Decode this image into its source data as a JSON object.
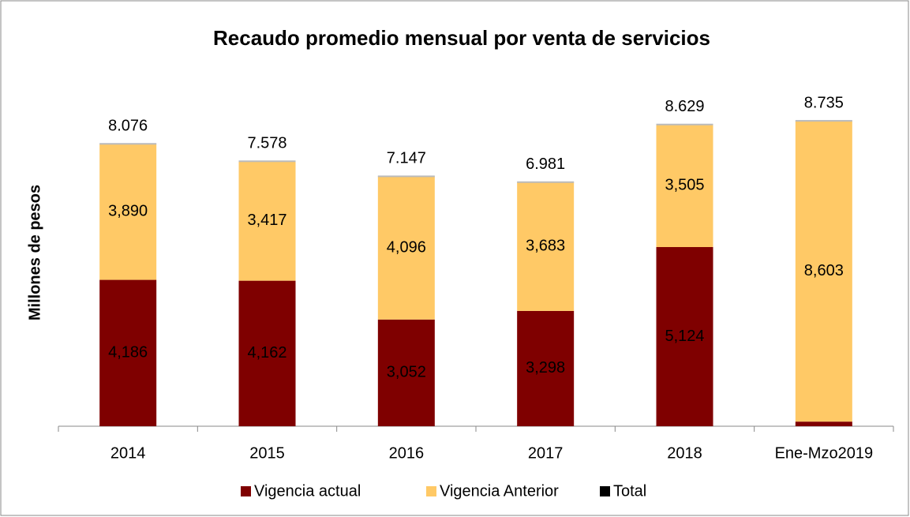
{
  "chart_data": {
    "type": "stacked-bar",
    "title": "Recaudo promedio mensual por venta de servicios",
    "y_label": "Millones de pesos",
    "categories": [
      "2014",
      "2015",
      "2016",
      "2017",
      "2018",
      "Ene-Mzo2019"
    ],
    "series": [
      {
        "name": "Vigencia actual",
        "color": "#7f0000",
        "values": [
          4186,
          4162,
          3052,
          3298,
          5124,
          132
        ],
        "value_labels": [
          "4,186",
          "4,162",
          "3,052",
          "3,298",
          "5,124",
          "132"
        ]
      },
      {
        "name": "Vigencia Anterior",
        "color": "#ffc966",
        "values": [
          3890,
          3417,
          4096,
          3683,
          3505,
          8603
        ],
        "value_labels": [
          "3,890",
          "3,417",
          "4,096",
          "3,683",
          "3,505",
          "8,603"
        ]
      },
      {
        "name": "Total",
        "color": "#000000",
        "values": [
          8076,
          7578,
          7147,
          6981,
          8629,
          8735
        ],
        "value_labels": [
          "8.076",
          "7.578",
          "7.147",
          "6.981",
          "8.629",
          "8.735"
        ]
      }
    ],
    "ylim": [
      0,
      10000
    ]
  }
}
